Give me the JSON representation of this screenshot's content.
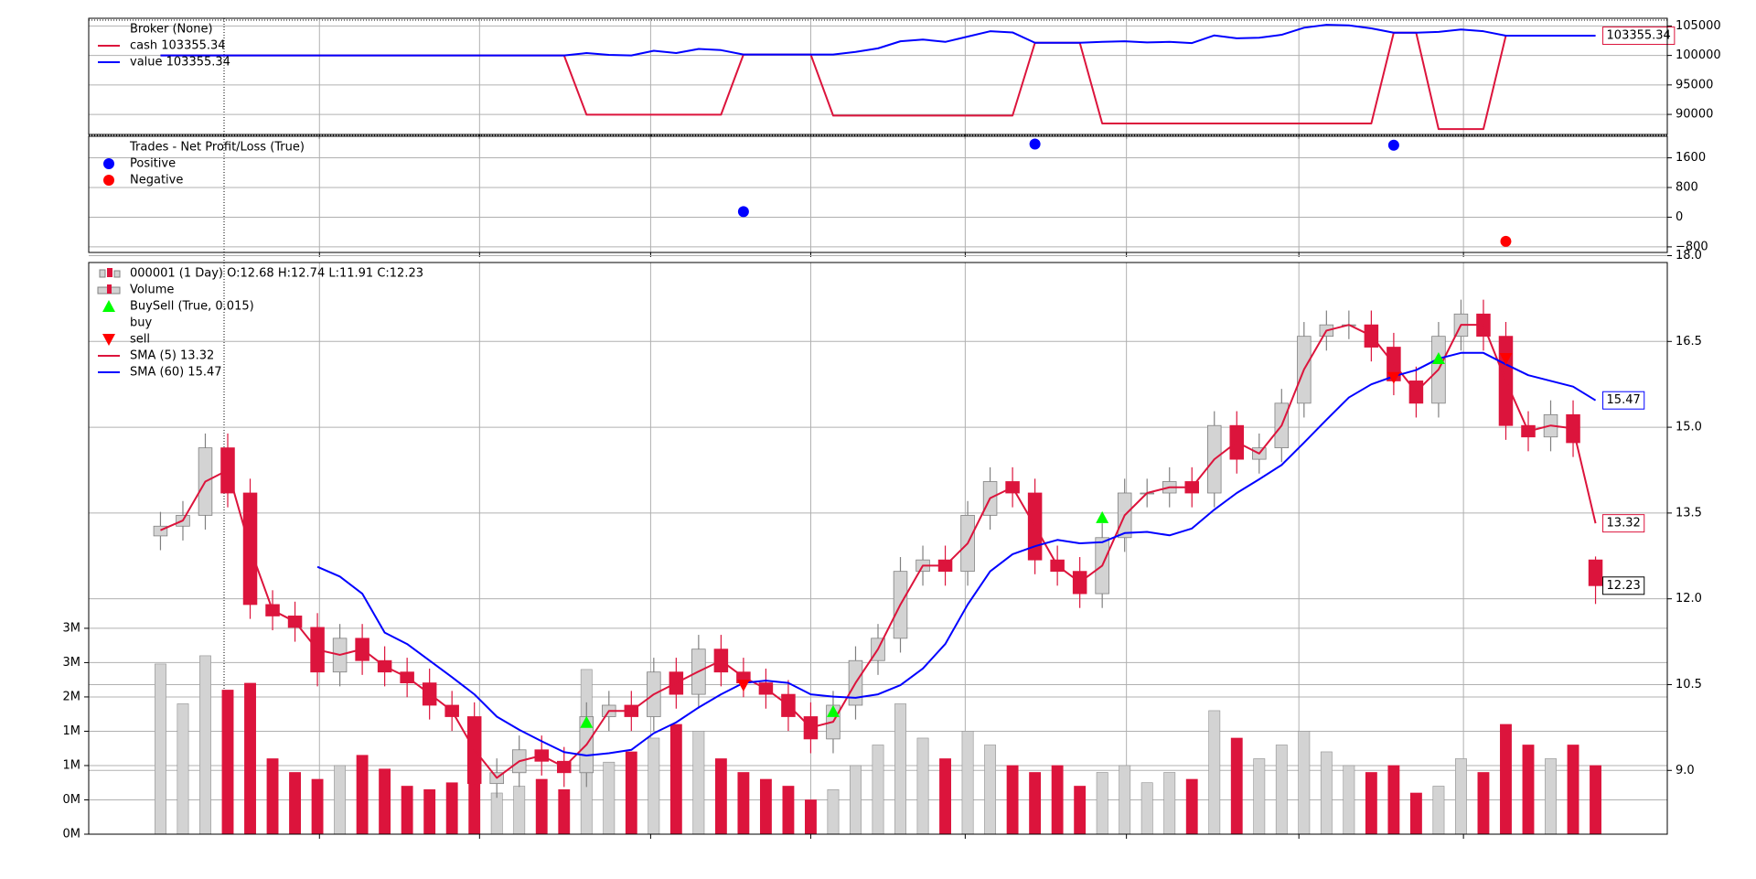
{
  "chart_data": [
    {
      "type": "line",
      "title": "Broker (None)",
      "x": [
        0,
        1,
        2,
        3,
        4,
        5,
        6,
        7,
        8,
        9,
        10,
        11,
        12,
        13,
        14,
        15,
        16,
        17,
        18,
        19,
        20,
        21,
        22,
        23,
        24,
        25,
        26,
        27,
        28,
        29,
        30,
        31,
        32,
        33,
        34,
        35,
        36,
        37,
        38,
        39,
        40,
        41,
        42,
        43,
        44,
        45,
        46,
        47,
        48,
        49,
        50,
        51,
        52,
        53,
        54,
        55,
        56,
        57,
        58,
        59,
        60,
        61,
        62,
        63,
        64
      ],
      "series": [
        {
          "name": "cash 103355.34",
          "color": "#dc143c",
          "end_label": "103355.34",
          "values": [
            100000,
            100000,
            100000,
            100000,
            100000,
            100000,
            100000,
            100000,
            100000,
            100000,
            100000,
            100000,
            100000,
            100000,
            100000,
            100000,
            100000,
            100000,
            100000,
            89950,
            89950,
            89950,
            89950,
            89950,
            89950,
            89950,
            100150,
            100150,
            100150,
            100150,
            89800,
            89800,
            89800,
            89800,
            89800,
            89800,
            89800,
            89800,
            89800,
            102150,
            102150,
            102150,
            88460,
            88460,
            88460,
            88460,
            88460,
            88460,
            88460,
            88460,
            88460,
            88460,
            88460,
            88460,
            88460,
            103860,
            103860,
            87510,
            87510,
            87510,
            103355.34,
            103355.34,
            103355.34,
            103355.34,
            103355.34
          ]
        },
        {
          "name": "value 103355.34",
          "color": "#0000ff",
          "values": [
            100000,
            100000,
            100000,
            100000,
            100000,
            100000,
            100000,
            100000,
            100000,
            100000,
            100000,
            100000,
            100000,
            100000,
            100000,
            100000,
            100000,
            100000,
            100000,
            100400,
            100100,
            100000,
            100800,
            100400,
            101100,
            100900,
            100150,
            100150,
            100150,
            100150,
            100150,
            100600,
            101200,
            102400,
            102700,
            102300,
            103200,
            104100,
            103900,
            102150,
            102150,
            102150,
            102300,
            102400,
            102200,
            102300,
            102100,
            103400,
            102900,
            103000,
            103500,
            104700,
            105200,
            105100,
            104600,
            103860,
            103860,
            104000,
            104400,
            104100,
            103355.34,
            103355.34,
            103355.34,
            103355.34,
            103355.34
          ]
        }
      ],
      "xlim": [
        -3.2,
        67.2
      ],
      "xticks": [
        7.09,
        14.23,
        21.86,
        29.0,
        35.89,
        43.08,
        50.77,
        58.11
      ],
      "ylim": [
        86600,
        106300
      ],
      "yticks": [
        90000,
        95000,
        100000,
        105000
      ],
      "grid": true
    },
    {
      "type": "scatter",
      "title": "Trades - Net Profit/Loss (True)",
      "series": [
        {
          "name": "Positive",
          "color": "#0000ff",
          "x": [
            26,
            39,
            55
          ],
          "values": [
            150,
            1970,
            1940
          ]
        },
        {
          "name": "Negative",
          "color": "#ff0000",
          "x": [
            60
          ],
          "values": [
            -650
          ]
        }
      ],
      "xlim": [
        -3.2,
        67.2
      ],
      "xticks": [
        7.09,
        14.23,
        21.86,
        29.0,
        35.89,
        43.08,
        50.77,
        58.11
      ],
      "ylim": [
        -950,
        2180
      ],
      "yticks": [
        {
          "value": -800,
          "label": "−800"
        },
        0,
        800,
        1600
      ],
      "grid": true
    },
    {
      "type": "candlestick",
      "title": "000001 (1 Day) O:12.68 H:12.74 L:11.91 C:12.23",
      "x": [
        0,
        1,
        2,
        3,
        4,
        5,
        6,
        7,
        8,
        9,
        10,
        11,
        12,
        13,
        14,
        15,
        16,
        17,
        18,
        19,
        20,
        21,
        22,
        23,
        24,
        25,
        26,
        27,
        28,
        29,
        30,
        31,
        32,
        33,
        34,
        35,
        36,
        37,
        38,
        39,
        40,
        41,
        42,
        43,
        44,
        45,
        46,
        47,
        48,
        49,
        50,
        51,
        52,
        53,
        54,
        55,
        56,
        57,
        58,
        59,
        60,
        61,
        62,
        63,
        64
      ],
      "open": [
        13.1,
        13.27,
        13.46,
        14.64,
        13.85,
        11.9,
        11.7,
        11.5,
        10.72,
        11.31,
        10.92,
        10.72,
        10.53,
        10.14,
        9.94,
        8.77,
        8.96,
        9.36,
        9.16,
        8.96,
        9.94,
        10.14,
        9.94,
        10.72,
        10.33,
        11.12,
        10.72,
        10.53,
        10.33,
        9.94,
        9.55,
        10.14,
        10.92,
        11.31,
        12.48,
        12.68,
        12.48,
        13.46,
        14.05,
        13.85,
        12.68,
        12.48,
        12.09,
        13.07,
        13.85,
        13.85,
        14.05,
        13.85,
        15.03,
        14.44,
        14.64,
        15.42,
        16.59,
        16.79,
        16.79,
        16.4,
        15.81,
        15.42,
        16.59,
        16.98,
        16.59,
        15.03,
        14.83,
        15.22,
        12.68
      ],
      "high": [
        13.52,
        13.71,
        14.89,
        14.89,
        14.1,
        12.15,
        11.95,
        11.75,
        11.56,
        11.56,
        11.17,
        10.97,
        10.78,
        10.39,
        10.19,
        9.21,
        9.61,
        9.61,
        9.41,
        10.19,
        10.39,
        10.39,
        10.97,
        10.97,
        11.37,
        11.37,
        10.97,
        10.78,
        10.58,
        10.19,
        10.39,
        11.17,
        11.56,
        12.73,
        12.93,
        12.93,
        13.71,
        14.3,
        14.3,
        14.1,
        12.93,
        12.73,
        13.32,
        14.1,
        14.1,
        14.3,
        14.3,
        15.28,
        15.28,
        14.89,
        15.67,
        16.84,
        17.04,
        17.04,
        17.04,
        16.65,
        16.06,
        16.84,
        17.23,
        17.23,
        16.84,
        15.28,
        15.47,
        15.47,
        12.74
      ],
      "low": [
        12.85,
        13.02,
        13.21,
        13.6,
        11.65,
        11.45,
        11.25,
        10.47,
        10.47,
        10.67,
        10.47,
        10.28,
        9.89,
        9.69,
        8.52,
        8.52,
        8.71,
        8.91,
        8.71,
        8.71,
        9.69,
        9.69,
        9.69,
        10.08,
        10.08,
        10.47,
        10.28,
        10.08,
        9.69,
        9.3,
        9.3,
        9.89,
        10.67,
        11.06,
        12.23,
        12.23,
        12.23,
        13.21,
        13.6,
        12.43,
        12.23,
        11.84,
        11.84,
        12.82,
        13.6,
        13.6,
        13.6,
        13.6,
        14.19,
        14.19,
        14.39,
        15.17,
        16.34,
        16.54,
        16.15,
        15.56,
        15.17,
        15.17,
        16.34,
        16.34,
        14.78,
        14.58,
        14.58,
        14.48,
        11.91
      ],
      "close": [
        13.27,
        13.46,
        14.64,
        13.85,
        11.9,
        11.7,
        11.5,
        10.72,
        11.31,
        10.92,
        10.72,
        10.53,
        10.14,
        9.94,
        8.77,
        8.96,
        9.36,
        9.16,
        8.96,
        9.94,
        10.14,
        9.94,
        10.72,
        10.33,
        11.12,
        10.72,
        10.53,
        10.33,
        9.94,
        9.55,
        10.14,
        10.92,
        11.31,
        12.48,
        12.68,
        12.48,
        13.46,
        14.05,
        13.85,
        12.68,
        12.48,
        12.09,
        13.07,
        13.85,
        13.85,
        14.05,
        13.85,
        15.03,
        14.44,
        14.64,
        15.42,
        16.59,
        16.79,
        16.79,
        16.4,
        15.81,
        15.42,
        16.59,
        16.98,
        16.59,
        15.03,
        14.83,
        15.22,
        14.73,
        12.23
      ],
      "end_label": "12.23",
      "up_color": "#d3d3d3",
      "down_color": "#dc143c",
      "volume": {
        "name": "Volume",
        "axis": "y2",
        "values": [
          2480000,
          1900000,
          2600000,
          2100000,
          2200000,
          1100000,
          900000,
          800000,
          1000000,
          1150000,
          950000,
          700000,
          650000,
          750000,
          900000,
          600000,
          700000,
          800000,
          650000,
          2400000,
          1050000,
          1200000,
          1400000,
          1600000,
          1500000,
          1100000,
          900000,
          800000,
          700000,
          500000,
          650000,
          1000000,
          1300000,
          1900000,
          1400000,
          1100000,
          1500000,
          1300000,
          1000000,
          900000,
          1000000,
          700000,
          900000,
          1000000,
          750000,
          900000,
          800000,
          1800000,
          1400000,
          1100000,
          1300000,
          1500000,
          1200000,
          1000000,
          900000,
          1000000,
          600000,
          700000,
          1100000,
          900000,
          1600000,
          1300000,
          1100000,
          1300000,
          1000000
        ]
      },
      "signals": {
        "name": "BuySell (True, 0.015)",
        "series": [
          {
            "name": "buy",
            "color": "#00ff00",
            "x": [
              19,
              30,
              42,
              57
            ],
            "values": [
              9.84,
              10.03,
              13.42,
              16.2
            ]
          },
          {
            "name": "sell",
            "color": "#ff0000",
            "x": [
              26,
              55,
              60
            ],
            "values": [
              10.49,
              15.87,
              16.2
            ]
          }
        ]
      },
      "series": [
        {
          "name": "SMA (5) 13.32",
          "color": "#dc143c",
          "end_label": "13.32",
          "values": [
            13.2,
            13.37,
            14.05,
            14.25,
            12.88,
            11.8,
            11.6,
            11.11,
            11.02,
            11.12,
            10.82,
            10.63,
            10.34,
            10.04,
            9.36,
            8.87,
            9.16,
            9.26,
            9.06,
            9.45,
            10.04,
            10.04,
            10.33,
            10.53,
            10.73,
            10.92,
            10.63,
            10.43,
            10.14,
            9.75,
            9.85,
            10.53,
            11.12,
            11.9,
            12.58,
            12.58,
            12.97,
            13.76,
            13.95,
            13.27,
            12.58,
            12.29,
            12.58,
            13.46,
            13.85,
            13.95,
            13.95,
            14.44,
            14.74,
            14.54,
            15.03,
            16.01,
            16.69,
            16.79,
            16.6,
            16.11,
            15.62,
            16.01,
            16.79,
            16.79,
            15.81,
            14.93,
            15.03,
            14.98,
            13.32
          ]
        },
        {
          "name": "SMA (60) 15.47",
          "color": "#0000ff",
          "end_label": "15.47",
          "values": [
            null,
            null,
            null,
            null,
            null,
            null,
            null,
            12.56,
            12.39,
            12.09,
            11.41,
            11.21,
            10.92,
            10.63,
            10.33,
            9.94,
            9.71,
            9.51,
            9.32,
            9.26,
            9.3,
            9.36,
            9.65,
            9.84,
            10.1,
            10.33,
            10.53,
            10.57,
            10.53,
            10.33,
            10.29,
            10.27,
            10.33,
            10.49,
            10.78,
            11.21,
            11.9,
            12.48,
            12.78,
            12.92,
            13.03,
            12.97,
            12.99,
            13.15,
            13.17,
            13.11,
            13.23,
            13.56,
            13.85,
            14.09,
            14.34,
            14.73,
            15.13,
            15.52,
            15.75,
            15.89,
            16.0,
            16.2,
            16.3,
            16.3,
            16.1,
            15.91,
            15.81,
            15.71,
            15.47
          ]
        }
      ],
      "xlim": [
        -3.2,
        67.2
      ],
      "xticks": [
        7.09,
        14.23,
        21.86,
        29.0,
        35.89,
        43.08,
        50.77,
        58.11
      ],
      "ylim": [
        7.885,
        17.88
      ],
      "yticks": [
        {
          "value": 9,
          "label": "9.0"
        },
        {
          "value": 10.5,
          "label": "10.5"
        },
        {
          "value": 12,
          "label": "12.0"
        },
        {
          "value": 13.5,
          "label": "13.5"
        },
        {
          "value": 15,
          "label": "15.0"
        },
        {
          "value": 16.5,
          "label": "16.5"
        },
        {
          "value": 18,
          "label": "18.0"
        }
      ],
      "y2lim": [
        0,
        8330000
      ],
      "y2ticks": [
        {
          "value": 0,
          "label": "0M"
        },
        {
          "value": 500000,
          "label": "0M"
        },
        {
          "value": 1000000,
          "label": "1M"
        },
        {
          "value": 1500000,
          "label": "1M"
        },
        {
          "value": 2000000,
          "label": "2M"
        },
        {
          "value": 2500000,
          "label": "3M"
        },
        {
          "value": 3000000,
          "label": "3M"
        }
      ],
      "grid": true
    }
  ]
}
